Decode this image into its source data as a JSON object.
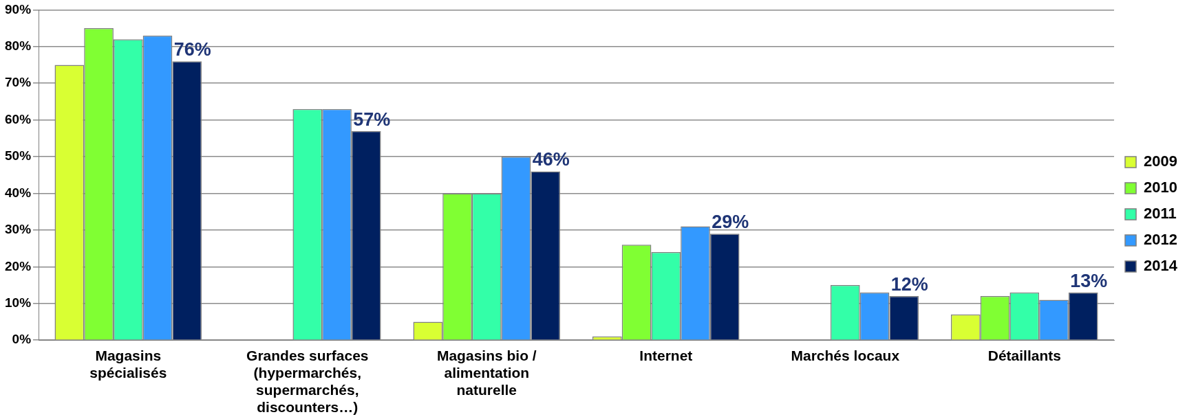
{
  "chart_data": {
    "type": "bar",
    "categories": [
      "Magasins spécialisés",
      "Grandes surfaces (hypermarchés, supermarchés, discounters…)",
      "Magasins bio / alimentation naturelle",
      "Internet",
      "Marchés locaux",
      "Détaillants"
    ],
    "series": [
      {
        "name": "2009",
        "color": "#d9ff33",
        "values": [
          75,
          null,
          5,
          1,
          null,
          7
        ]
      },
      {
        "name": "2010",
        "color": "#80ff33",
        "values": [
          85,
          null,
          40,
          26,
          null,
          12
        ]
      },
      {
        "name": "2011",
        "color": "#33ffa8",
        "values": [
          82,
          63,
          40,
          24,
          15,
          13
        ]
      },
      {
        "name": "2012",
        "color": "#3399ff",
        "values": [
          83,
          63,
          50,
          31,
          13,
          11
        ]
      },
      {
        "name": "2014",
        "color": "#002060",
        "values": [
          76,
          57,
          46,
          29,
          12,
          13
        ],
        "value_labels": [
          "76%",
          "57%",
          "46%",
          "29%",
          "12%",
          "13%"
        ]
      }
    ],
    "ylim": [
      0,
      90
    ],
    "yticks": [
      {
        "value": 0,
        "label": "0%"
      },
      {
        "value": 10,
        "label": "10%"
      },
      {
        "value": 20,
        "label": "20%"
      },
      {
        "value": 30,
        "label": "30%"
      },
      {
        "value": 40,
        "label": "40%"
      },
      {
        "value": 50,
        "label": "50%"
      },
      {
        "value": 60,
        "label": "60%"
      },
      {
        "value": 70,
        "label": "70%"
      },
      {
        "value": 80,
        "label": "80%"
      },
      {
        "value": 90,
        "label": "90%"
      }
    ],
    "grid": "y",
    "legend": "right"
  }
}
